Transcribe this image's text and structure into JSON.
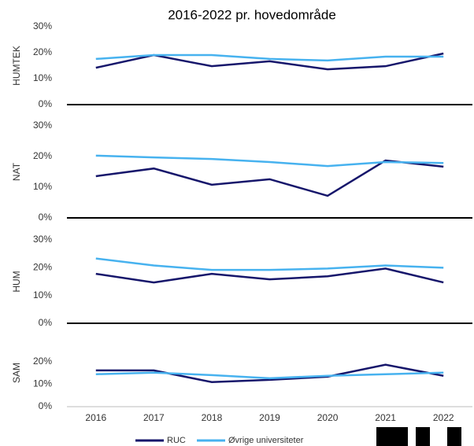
{
  "chart_data": {
    "type": "line",
    "title": "2016-2022 pr. hovedområde",
    "categories": [
      "2016",
      "2017",
      "2018",
      "2019",
      "2020",
      "2021",
      "2022"
    ],
    "series": [
      {
        "name": "RUC",
        "color": "#16166b"
      },
      {
        "name": "Øvrige universiteter",
        "color": "#47b2ef"
      }
    ],
    "panels": [
      {
        "ylabel": "HUMTEK",
        "ylim": [
          0,
          30
        ],
        "yticks": [
          {
            "value": 0,
            "label": "0%"
          },
          {
            "value": 10,
            "label": "10%"
          },
          {
            "value": 20,
            "label": "20%"
          },
          {
            "value": 30,
            "label": "30%"
          }
        ],
        "values": [
          [
            14.2,
            19.1,
            14.8,
            16.7,
            13.6,
            14.8,
            19.7
          ],
          [
            17.6,
            19.1,
            19.1,
            17.6,
            17.0,
            18.5,
            18.5
          ]
        ]
      },
      {
        "ylabel": "NAT",
        "ylim": [
          0,
          30
        ],
        "yticks": [
          {
            "value": 0,
            "label": "0%"
          },
          {
            "value": 10,
            "label": "10%"
          },
          {
            "value": 20,
            "label": "20%"
          },
          {
            "value": 30,
            "label": "30%"
          }
        ],
        "values": [
          [
            13.6,
            16.1,
            10.8,
            12.6,
            7.2,
            18.7,
            16.7
          ],
          [
            20.3,
            19.7,
            19.2,
            18.2,
            16.9,
            18.2,
            17.9
          ]
        ]
      },
      {
        "ylabel": "HUM",
        "ylim": [
          0,
          30
        ],
        "yticks": [
          {
            "value": 0,
            "label": "0%"
          },
          {
            "value": 10,
            "label": "10%"
          },
          {
            "value": 20,
            "label": "20%"
          },
          {
            "value": 30,
            "label": "30%"
          }
        ],
        "values": [
          [
            17.8,
            14.7,
            17.8,
            15.8,
            16.9,
            19.7,
            14.7
          ],
          [
            23.3,
            20.8,
            19.2,
            19.2,
            19.7,
            20.8,
            20.0
          ]
        ]
      },
      {
        "ylabel": "SAM",
        "ylim": [
          0,
          30
        ],
        "yticks": [
          {
            "value": 0,
            "label": "0%"
          },
          {
            "value": 10,
            "label": "10%"
          },
          {
            "value": 20,
            "label": "20%"
          }
        ],
        "values": [
          [
            16.1,
            16.1,
            10.9,
            11.9,
            13.3,
            18.6,
            13.7
          ],
          [
            14.4,
            15.1,
            14.0,
            12.6,
            13.7,
            14.4,
            15.1
          ]
        ]
      }
    ]
  }
}
